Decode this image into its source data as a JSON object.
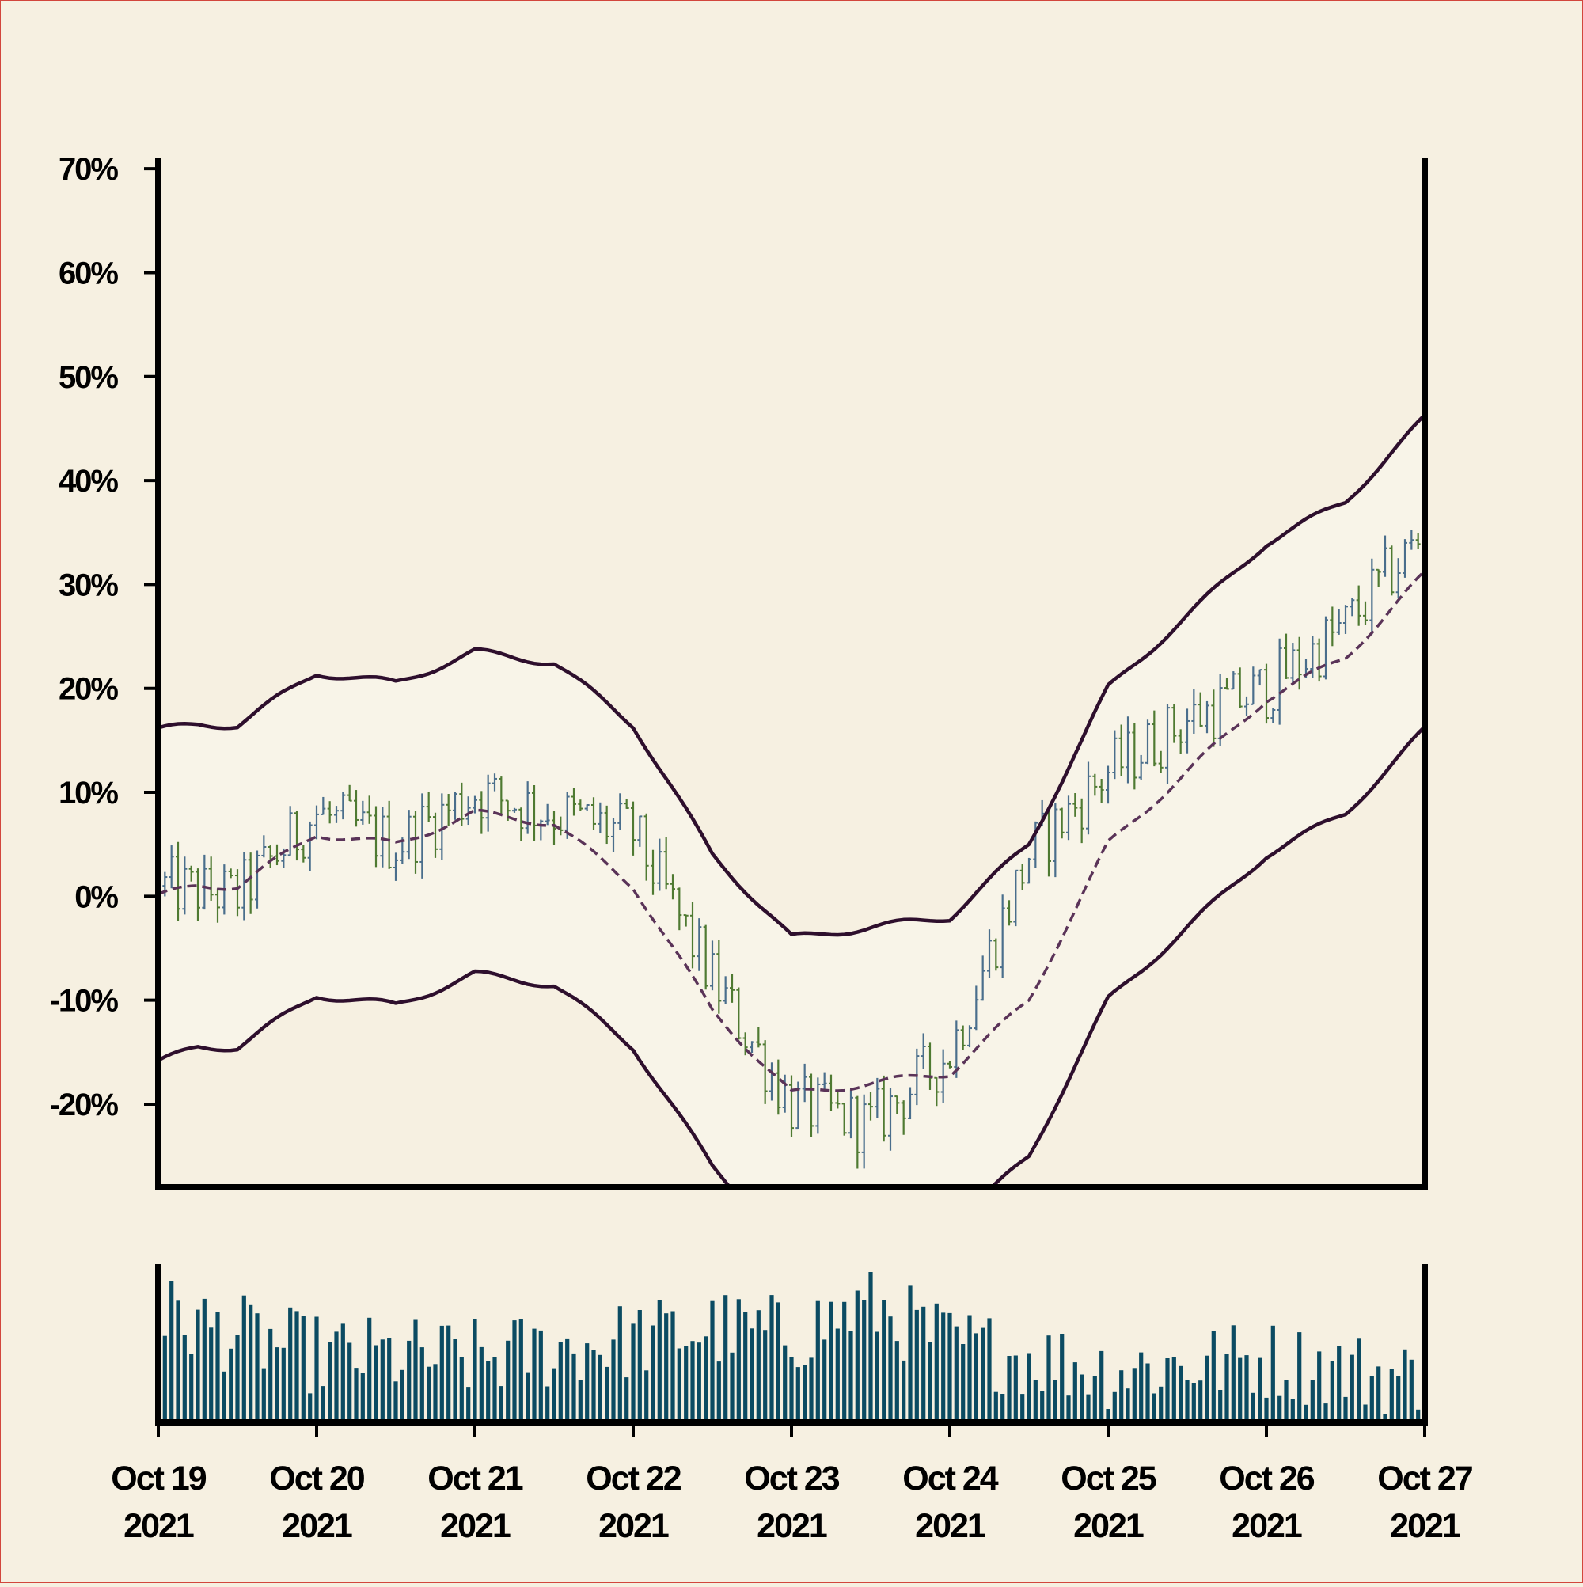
{
  "chart_data": {
    "type": "ohlc",
    "title": "",
    "xlabel": "",
    "ylabel": "",
    "ylim": [
      -28,
      71
    ],
    "y_ticks": [
      70,
      60,
      50,
      40,
      30,
      20,
      10,
      0,
      -10,
      -20
    ],
    "y_tick_labels": [
      "70%",
      "60%",
      "50%",
      "40%",
      "30%",
      "20%",
      "10%",
      "0%",
      "-10%",
      "-20%"
    ],
    "x_range": [
      "2021-10-19",
      "2021-10-27"
    ],
    "x_ticks": [
      {
        "date": "2021-10-19",
        "line1": "Oct 19",
        "line2": "2021"
      },
      {
        "date": "2021-10-20",
        "line1": "Oct 20",
        "line2": "2021"
      },
      {
        "date": "2021-10-21",
        "line1": "Oct 21",
        "line2": "2021"
      },
      {
        "date": "2021-10-22",
        "line1": "Oct 22",
        "line2": "2021"
      },
      {
        "date": "2021-10-23",
        "line1": "Oct 23",
        "line2": "2021"
      },
      {
        "date": "2021-10-24",
        "line1": "Oct 24",
        "line2": "2021"
      },
      {
        "date": "2021-10-25",
        "line1": "Oct 25",
        "line2": "2021"
      },
      {
        "date": "2021-10-26",
        "line1": "Oct 26",
        "line2": "2021"
      },
      {
        "date": "2021-10-27",
        "line1": "Oct 27",
        "line2": "2021"
      }
    ],
    "bar_interval_hours": 1,
    "price_trend": {
      "x": [
        "2021-10-19",
        "2021-10-19T12:00",
        "2021-10-20",
        "2021-10-20T12:00",
        "2021-10-21",
        "2021-10-21T12:00",
        "2021-10-22",
        "2021-10-22T12:00",
        "2021-10-23",
        "2021-10-23T12:00",
        "2021-10-24",
        "2021-10-24T12:00",
        "2021-10-25",
        "2021-10-25T12:00",
        "2021-10-26",
        "2021-10-26T12:00",
        "2021-10-27"
      ],
      "y": [
        1,
        0,
        8,
        5,
        10,
        8,
        6,
        -8,
        -20,
        -22,
        -15,
        4,
        12,
        17,
        20,
        26,
        35
      ]
    },
    "bollinger_middle": {
      "x": [
        "2021-10-19",
        "2021-10-19T06:00",
        "2021-10-19T12:00",
        "2021-10-20",
        "2021-10-20T12:00",
        "2021-10-21",
        "2021-10-21T12:00",
        "2021-10-22",
        "2021-10-22T12:00",
        "2021-10-23",
        "2021-10-23T12:00",
        "2021-10-24",
        "2021-10-24T12:00",
        "2021-10-25",
        "2021-10-25T12:00",
        "2021-10-26",
        "2021-10-26T12:00",
        "2021-10-27"
      ],
      "y": [
        0,
        1,
        1,
        6,
        5,
        8,
        7,
        1,
        -11,
        -19,
        -18,
        -17,
        -10,
        5,
        12,
        19,
        23,
        31
      ]
    },
    "bollinger_band_width": {
      "x": [
        "2021-10-19",
        "2021-10-19T06:00",
        "2021-10-19T12:00",
        "2021-10-20",
        "2021-10-20T12:00",
        "2021-10-21",
        "2021-10-21T12:00",
        "2021-10-22",
        "2021-10-22T12:00",
        "2021-10-23",
        "2021-10-23T12:00",
        "2021-10-24",
        "2021-10-24T12:00",
        "2021-10-25",
        "2021-10-25T12:00",
        "2021-10-26",
        "2021-10-26T12:00",
        "2021-10-27"
      ],
      "y": [
        16,
        15.5,
        15.5,
        15.5,
        15.5,
        15.5,
        15.5,
        15.5,
        15,
        15,
        15,
        15,
        15,
        15,
        15,
        15,
        15,
        15
      ]
    },
    "volume_trend": {
      "x": [
        "2021-10-19",
        "2021-10-20",
        "2021-10-21",
        "2021-10-22",
        "2021-10-22T12:00",
        "2021-10-23",
        "2021-10-23T12:00",
        "2021-10-24",
        "2021-10-25",
        "2021-10-26",
        "2021-10-27"
      ],
      "y": [
        0.72,
        0.45,
        0.42,
        0.55,
        0.62,
        0.58,
        0.78,
        0.52,
        0.35,
        0.42,
        0.28
      ]
    },
    "colors": {
      "background": "#f6f0e1",
      "band_fill": "#f8f4e8",
      "band_line": "#2e0f2d",
      "middle_line": "#5a3358",
      "up_bar": "#4a6e8c",
      "down_bar": "#4f7a32",
      "volume_bar": "#0b4b62",
      "axis": "#000000"
    }
  }
}
